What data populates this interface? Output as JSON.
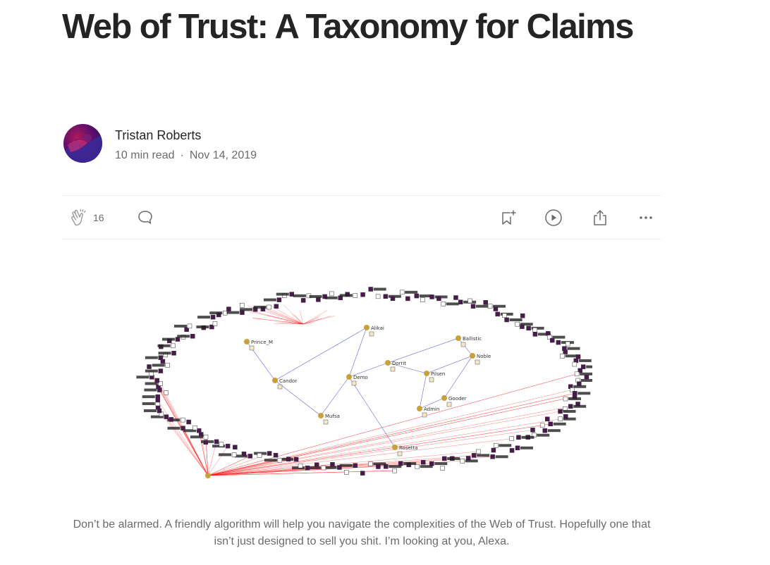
{
  "article": {
    "title": "Web of Trust: A Taxonomy for Claims",
    "author": "Tristan Roberts",
    "read_time": "10 min read",
    "separator": "·",
    "date": "Nov 14, 2019"
  },
  "actions": {
    "clap_count": "16",
    "icons": {
      "clap": "clap-icon",
      "comment": "comment-icon",
      "save": "bookmark-add-icon",
      "listen": "play-icon",
      "share": "share-icon",
      "more": "more-icon"
    }
  },
  "figure": {
    "node_labels": [
      "Candor",
      "Mufsa",
      "Demo",
      "Alikai",
      "Dorrit",
      "Pilsen",
      "Admin",
      "Gooder",
      "Ballistic",
      "Noble",
      "Rosetta",
      "Prince_M"
    ],
    "caption": "Don’t be alarmed. A friendly algorithm will help you navigate the complexities of the Web of Trust. Hopefully one that isn’t just designed to sell you shit. I’m looking at you, Alexa."
  },
  "colors": {
    "text": "#242424",
    "muted": "#6b6b6b",
    "divider": "#f0f0f0",
    "node_gold": "#c9a13a",
    "node_purple": "#4a1a4f",
    "edge_red": "#ff1a1a",
    "edge_blue": "#3a3ad8"
  }
}
